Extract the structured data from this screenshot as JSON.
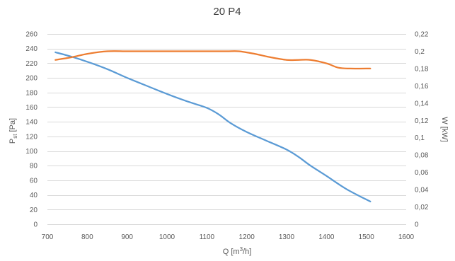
{
  "chart_data": {
    "type": "line",
    "title": "20 P4",
    "xlabel_main": "Q [m",
    "xlabel_sup": "3",
    "xlabel_tail": "/h]",
    "ylabel_left_main": "P",
    "ylabel_left_sub": "st",
    "ylabel_left_tail": " [Pa]",
    "ylabel_right": "W [kW]",
    "xlim": [
      700,
      1600
    ],
    "ylim_left": [
      0,
      260
    ],
    "ylim_right": [
      0,
      0.22
    ],
    "x_ticks": [
      "700",
      "800",
      "900",
      "1000",
      "1100",
      "1200",
      "1300",
      "1400",
      "1500",
      "1600"
    ],
    "y_left_ticks": [
      "0",
      "20",
      "40",
      "60",
      "80",
      "100",
      "120",
      "140",
      "160",
      "180",
      "200",
      "220",
      "240",
      "260"
    ],
    "y_right_ticks": [
      "0",
      "0,02",
      "0,04",
      "0,06",
      "0,08",
      "0,1",
      "0,12",
      "0,14",
      "0,16",
      "0,18",
      "0,2",
      "0,22"
    ],
    "grid": true,
    "series": [
      {
        "axis": "left",
        "color": "#5b9bd5",
        "x": [
          720,
          760,
          800,
          850,
          900,
          950,
          1000,
          1050,
          1100,
          1130,
          1160,
          1200,
          1250,
          1300,
          1330,
          1360,
          1400,
          1450,
          1510
        ],
        "y": [
          235,
          229,
          222,
          212,
          200,
          189,
          178,
          168,
          159,
          150,
          138,
          126,
          114,
          102,
          92,
          80,
          66,
          48,
          31
        ]
      },
      {
        "axis": "right",
        "color": "#ed7d31",
        "x": [
          720,
          760,
          800,
          850,
          900,
          950,
          1000,
          1050,
          1100,
          1150,
          1180,
          1220,
          1260,
          1300,
          1330,
          1360,
          1400,
          1430,
          1460,
          1510
        ],
        "y": [
          0.19,
          0.193,
          0.197,
          0.2,
          0.2,
          0.2,
          0.2,
          0.2,
          0.2,
          0.2,
          0.2,
          0.197,
          0.193,
          0.19,
          0.19,
          0.19,
          0.186,
          0.181,
          0.18,
          0.18
        ]
      }
    ]
  }
}
